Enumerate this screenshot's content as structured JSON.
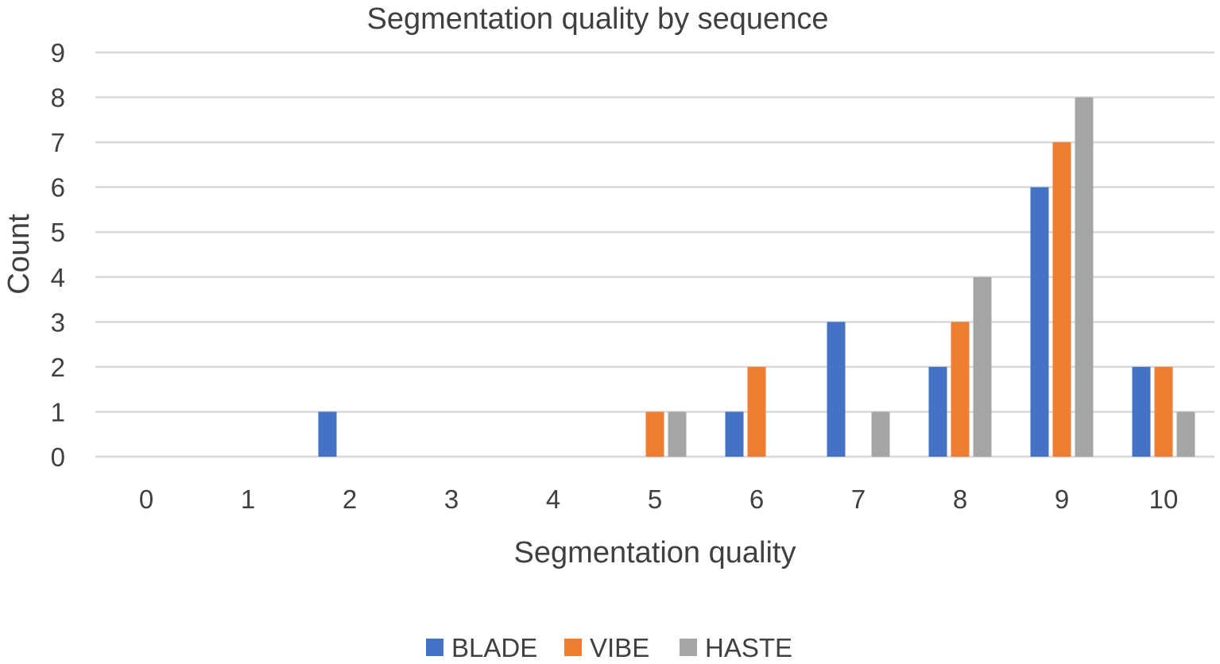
{
  "chart_data": {
    "type": "bar",
    "title": "Segmentation quality by sequence",
    "xlabel": "Segmentation quality",
    "ylabel": "Count",
    "categories": [
      "0",
      "1",
      "2",
      "3",
      "4",
      "5",
      "6",
      "7",
      "8",
      "9",
      "10"
    ],
    "series": [
      {
        "name": "BLADE",
        "color": "#4472c4",
        "values": [
          0,
          0,
          1,
          0,
          0,
          0,
          1,
          3,
          2,
          6,
          2
        ]
      },
      {
        "name": "VIBE",
        "color": "#ed7d31",
        "values": [
          0,
          0,
          0,
          0,
          0,
          1,
          2,
          0,
          3,
          7,
          2
        ]
      },
      {
        "name": "HASTE",
        "color": "#a5a5a5",
        "values": [
          0,
          0,
          0,
          0,
          0,
          1,
          0,
          1,
          4,
          8,
          1
        ]
      }
    ],
    "ylim": [
      0,
      9
    ],
    "yticks": [
      0,
      1,
      2,
      3,
      4,
      5,
      6,
      7,
      8,
      9
    ],
    "grid": true,
    "legend_position": "bottom"
  }
}
